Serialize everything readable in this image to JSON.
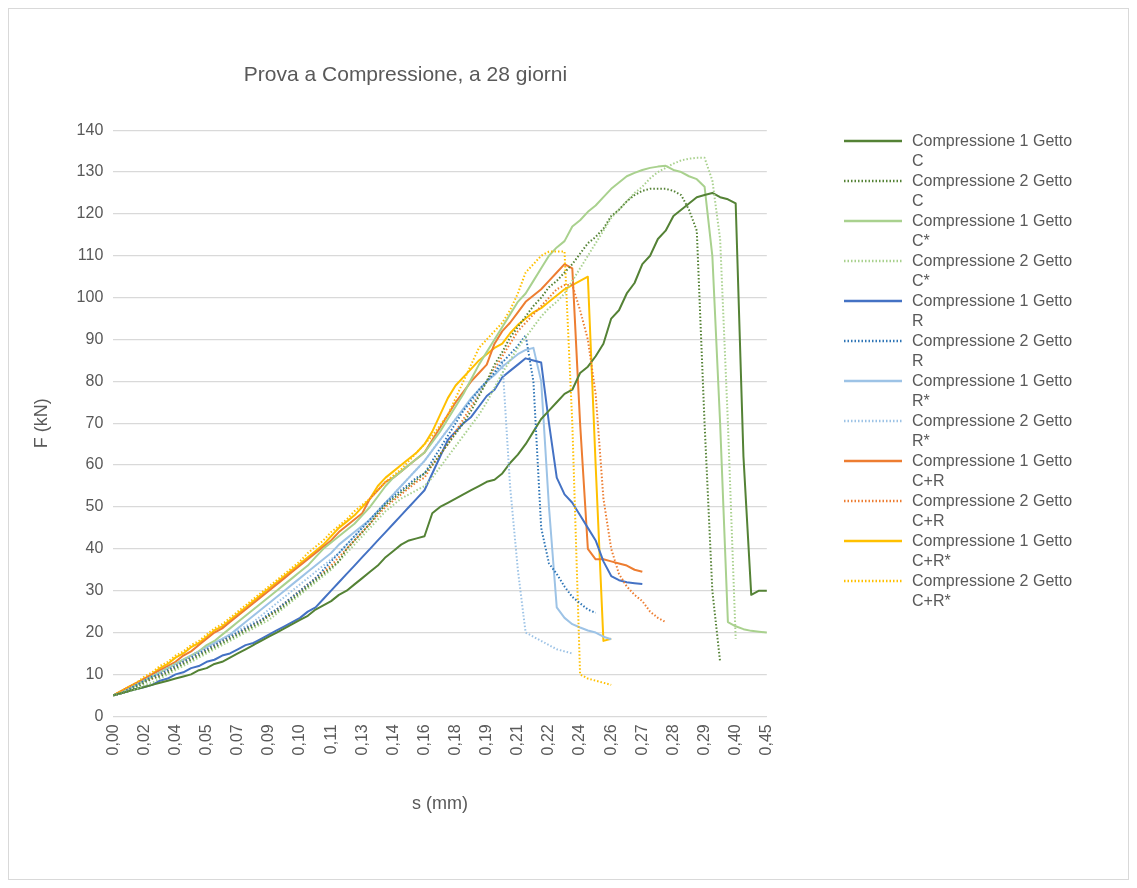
{
  "chart_data": {
    "type": "line",
    "title": "Prova a Compressione, a 28 giorni",
    "xlabel": "s (mm)",
    "ylabel": "F (kN)",
    "categories": [
      "0,00",
      null,
      null,
      null,
      "0,02",
      null,
      null,
      null,
      "0,04",
      null,
      null,
      null,
      "0,05",
      null,
      null,
      null,
      "0,07",
      null,
      null,
      null,
      "0,09",
      null,
      null,
      null,
      "0,10",
      null,
      null,
      null,
      "0,11",
      null,
      null,
      null,
      "0,13",
      null,
      null,
      null,
      "0,14",
      null,
      null,
      null,
      "0,16",
      null,
      null,
      null,
      "0,18",
      null,
      null,
      null,
      "0,19",
      null,
      null,
      null,
      "0,21",
      null,
      null,
      null,
      "0,22",
      null,
      null,
      null,
      "0,24",
      null,
      null,
      null,
      "0,26",
      null,
      null,
      null,
      "0,27",
      null,
      null,
      null,
      "0,28",
      null,
      null,
      null,
      "0,29",
      null,
      null,
      null,
      "0,40",
      null,
      null,
      null,
      "0,45"
    ],
    "series": [
      {
        "name": "Compressione 1 Getto C",
        "color": "#548235",
        "line_style": "solid",
        "values": [
          5,
          5.5,
          6,
          6.5,
          7,
          7.5,
          8,
          8.5,
          9,
          9.5,
          10,
          11,
          11.5,
          12.5,
          13,
          14,
          15,
          16,
          17,
          18,
          19,
          20,
          21,
          22,
          23,
          24,
          25.5,
          26.5,
          27.5,
          29,
          30,
          31.5,
          33,
          34.5,
          36,
          38,
          39.5,
          41,
          42,
          42.5,
          43,
          48.5,
          50,
          51,
          52,
          53,
          54,
          55,
          56,
          56.5,
          58,
          60.5,
          62.5,
          65,
          68,
          71,
          73,
          75,
          77,
          78,
          82,
          83.5,
          86,
          89,
          95,
          97,
          101,
          103.5,
          108,
          110,
          114,
          116,
          119.5,
          121,
          122.5,
          124,
          124.5,
          125,
          124,
          123.5,
          122.5,
          62,
          29,
          30,
          30
        ]
      },
      {
        "name": "Compressione 2 Getto C",
        "color": "#548235",
        "line_style": "dotted",
        "values": [
          5,
          5.5,
          6,
          7,
          8,
          9,
          9.5,
          10.5,
          11.5,
          12.5,
          13.5,
          14.5,
          15.5,
          16.5,
          17.5,
          18.5,
          19.5,
          20.5,
          21.5,
          22.5,
          24,
          25,
          26.5,
          28,
          29.5,
          31,
          32.5,
          34,
          35.5,
          37,
          40,
          42,
          44,
          46,
          48.5,
          50.5,
          52,
          53.5,
          55,
          56.5,
          58,
          60,
          62.5,
          65,
          67.5,
          70,
          73,
          76.5,
          80,
          84,
          87,
          90.5,
          93,
          95.5,
          98,
          100,
          102.5,
          104,
          106,
          108,
          110.5,
          113,
          114.5,
          116.5,
          119.5,
          121,
          123,
          124.5,
          125.5,
          126,
          126,
          126,
          125.5,
          124.5,
          121,
          116,
          70,
          30,
          13,
          null,
          null,
          null,
          null,
          null,
          null
        ]
      },
      {
        "name": "Compressione 1 Getto C*",
        "color": "#a9d18e",
        "line_style": "solid",
        "values": [
          5,
          5.5,
          6.5,
          7.5,
          8.5,
          9.5,
          10.5,
          11.5,
          12.5,
          13.5,
          14.5,
          15.5,
          17,
          18,
          19.5,
          21,
          22.5,
          24,
          25.5,
          27,
          28.5,
          30,
          31.5,
          33,
          34.5,
          36,
          38,
          40,
          41.5,
          43,
          44.5,
          46,
          48,
          50,
          52.5,
          55,
          57,
          58.5,
          60,
          61.5,
          63,
          65.5,
          68,
          71,
          74,
          77,
          80.5,
          84,
          87,
          90,
          93,
          96,
          99,
          101,
          104,
          107,
          110,
          112,
          113.5,
          117,
          118.5,
          120.5,
          122,
          124,
          126,
          127.5,
          129,
          129.8,
          130.5,
          131,
          131.3,
          131.5,
          130.5,
          130,
          129,
          128.3,
          126.5,
          110,
          70,
          22.5,
          21.5,
          20.8,
          20.4,
          20.2,
          20
        ]
      },
      {
        "name": "Compressione 2 Getto C*",
        "color": "#a9d18e",
        "line_style": "dotted",
        "values": [
          5,
          5.5,
          6,
          6.5,
          7.5,
          8,
          9,
          10,
          11,
          12,
          13,
          14,
          15,
          16,
          17,
          18,
          19,
          20,
          21,
          22,
          23,
          24.5,
          26,
          27.5,
          29,
          30.5,
          32,
          33.5,
          35,
          37,
          39,
          41,
          43,
          45,
          47,
          49,
          50.5,
          52,
          53,
          54,
          55,
          57,
          59.5,
          62,
          64.5,
          67,
          69.5,
          72,
          75,
          78.5,
          82,
          85,
          88,
          90.5,
          93,
          95.5,
          97.5,
          99,
          101,
          104,
          107,
          110,
          113,
          116,
          119,
          121,
          123,
          125,
          126.5,
          128.5,
          130,
          131,
          132,
          132.8,
          133.2,
          133.4,
          133.4,
          128,
          114,
          70,
          18.5,
          null,
          null,
          null,
          null
        ]
      },
      {
        "name": "Compressione 1 Getto R",
        "color": "#4472c4",
        "line_style": "solid",
        "values": [
          5,
          5.5,
          6,
          6.5,
          7,
          7.5,
          8.5,
          9,
          10,
          10.5,
          11.5,
          12,
          13,
          13.5,
          14.5,
          15,
          16,
          17,
          17.5,
          18.5,
          19.5,
          20.5,
          21.5,
          22.5,
          23.5,
          25,
          26,
          28,
          30,
          32,
          34,
          36,
          38,
          40,
          42,
          44,
          46,
          48,
          50,
          52,
          54,
          58,
          62,
          66,
          68,
          70,
          71.5,
          74,
          76.5,
          78,
          81,
          82.5,
          84,
          85.5,
          85,
          84.5,
          70,
          57,
          53,
          51,
          48,
          45,
          42,
          37,
          33.5,
          32.5,
          32,
          31.8,
          31.6,
          null,
          null,
          null,
          null,
          null,
          null,
          null,
          null,
          null,
          null,
          null,
          null,
          null,
          null,
          null,
          null
        ]
      },
      {
        "name": "Compressione 2 Getto R",
        "color": "#2e75b6",
        "line_style": "dotted",
        "values": [
          5,
          5.5,
          6.5,
          7.5,
          8.5,
          9.5,
          10,
          11,
          12,
          13,
          14,
          15,
          16,
          17,
          18,
          19,
          20,
          21,
          22,
          23,
          24.5,
          25.5,
          27,
          28.5,
          30,
          31.5,
          33,
          35,
          37,
          39,
          41,
          43,
          45,
          47,
          49,
          51,
          52.5,
          54,
          55.5,
          57,
          58,
          61,
          64,
          67,
          70,
          73,
          75.5,
          78,
          80,
          82,
          84.5,
          86.5,
          88.5,
          91,
          80,
          45,
          36.5,
          34,
          31,
          28.5,
          27,
          25.5,
          24.7,
          null,
          null,
          null,
          null,
          null,
          null,
          null,
          null,
          null,
          null,
          null,
          null,
          null,
          null,
          null,
          null,
          null,
          null,
          null,
          null,
          null,
          null
        ]
      },
      {
        "name": "Compressione 1 Getto R*",
        "color": "#9dc3e6",
        "line_style": "solid",
        "values": [
          5,
          5.5,
          6.5,
          7.5,
          8.5,
          9.5,
          10.5,
          11.5,
          12.5,
          13.5,
          14.5,
          15.5,
          16.5,
          17.5,
          18.5,
          19.5,
          21,
          22.5,
          24,
          25.5,
          27,
          28.5,
          30,
          31.5,
          33,
          34.5,
          36,
          37.5,
          39,
          41,
          42.5,
          44,
          45.5,
          47,
          49,
          51,
          53,
          55,
          57,
          59,
          61,
          63.5,
          66,
          68.5,
          71,
          73.5,
          76,
          78,
          80,
          81.5,
          83.5,
          85,
          86.5,
          87.5,
          88,
          80,
          50,
          26,
          23.5,
          22,
          21.2,
          20.5,
          20,
          19,
          18.4,
          null,
          null,
          null,
          null,
          null,
          null,
          null,
          null,
          null,
          null,
          null,
          null,
          null,
          null,
          null,
          null,
          null,
          null,
          null,
          null
        ]
      },
      {
        "name": "Compressione 2 Getto R*",
        "color": "#9dc3e6",
        "line_style": "dotted",
        "values": [
          5,
          5.5,
          6.5,
          7.5,
          8.5,
          9.5,
          10.5,
          11.5,
          12.5,
          13.5,
          14.5,
          15.5,
          16.5,
          17.5,
          18.5,
          19.5,
          20.5,
          21.5,
          22.5,
          24,
          25.5,
          27,
          28.5,
          30,
          31.5,
          33,
          34.5,
          36,
          37.5,
          39,
          41,
          43,
          45,
          47,
          49,
          51,
          53,
          55,
          57,
          59,
          61,
          63.5,
          66,
          68.5,
          71,
          73,
          75,
          77,
          80,
          82.5,
          85,
          55,
          35,
          20,
          19,
          18,
          17,
          16,
          15.5,
          15,
          null,
          null,
          null,
          null,
          null,
          null,
          null,
          null,
          null,
          null,
          null,
          null,
          null,
          null,
          null,
          null,
          null,
          null,
          null,
          null,
          null,
          null,
          null,
          null,
          null
        ]
      },
      {
        "name": "Compressione 1 Getto C+R",
        "color": "#ed7d31",
        "line_style": "solid",
        "values": [
          5,
          6,
          7,
          8,
          9,
          10,
          11,
          12,
          13,
          14.5,
          15.5,
          17,
          18.5,
          20,
          21,
          22.5,
          24,
          25.5,
          27,
          28.5,
          30,
          31.5,
          33,
          34.5,
          36,
          37.5,
          39,
          40.5,
          42,
          44,
          45.5,
          47,
          48.5,
          52,
          54,
          56,
          57,
          58.5,
          60,
          61.5,
          63,
          66,
          69,
          72,
          75,
          77.5,
          80,
          82,
          84,
          89,
          92,
          94,
          96.5,
          99,
          100.5,
          102,
          104,
          106,
          108,
          107,
          70,
          40,
          37.5,
          37.5,
          37,
          36.5,
          36,
          35,
          34.5,
          null,
          null,
          null,
          null,
          null,
          null,
          null,
          null,
          null,
          null,
          null,
          null,
          null,
          null,
          null,
          null
        ]
      },
      {
        "name": "Compressione 2 Getto C+R",
        "color": "#ed7d31",
        "line_style": "dotted",
        "values": [
          5,
          5.5,
          6.5,
          7.5,
          8.5,
          9,
          10,
          11,
          12,
          13,
          14,
          15,
          16,
          17,
          18,
          19,
          20,
          21,
          22,
          23,
          24,
          25.5,
          27,
          28.5,
          30,
          31.5,
          33,
          34.5,
          36,
          38,
          40,
          42,
          44,
          46,
          48,
          50,
          51.5,
          53,
          54.5,
          56,
          57,
          60,
          62.5,
          65,
          68,
          71,
          74,
          77,
          80,
          83,
          86,
          89,
          92,
          94,
          96,
          98,
          100,
          102,
          103,
          103,
          97,
          90,
          77,
          52,
          40,
          34,
          31,
          29,
          27.5,
          25,
          23.5,
          22.5,
          null,
          null,
          null,
          null,
          null,
          null,
          null,
          null,
          null,
          null,
          null,
          null,
          null
        ]
      },
      {
        "name": "Compressione 1 Getto C+R*",
        "color": "#ffc000",
        "line_style": "solid",
        "values": [
          5,
          6,
          7,
          8,
          9,
          10,
          11.5,
          12.5,
          14,
          15,
          16.5,
          17.5,
          19,
          20.5,
          21.5,
          23,
          24.5,
          26,
          27.5,
          29,
          30.5,
          32,
          33.5,
          35,
          36.5,
          38,
          39.5,
          41,
          43,
          45,
          46.5,
          48,
          50,
          52,
          55,
          57,
          58.5,
          60,
          61.5,
          63,
          65,
          68,
          72,
          76,
          79,
          81,
          83,
          85,
          86.5,
          88,
          89,
          91.5,
          93.5,
          95,
          96.5,
          97.5,
          99,
          100.5,
          102,
          103,
          104,
          105,
          60,
          18,
          18.5,
          null,
          null,
          null,
          null,
          null,
          null,
          null,
          null,
          null,
          null,
          null,
          null,
          null,
          null,
          null,
          null,
          null,
          null,
          null,
          null
        ]
      },
      {
        "name": "Compressione 2 Getto C+R*",
        "color": "#ffc000",
        "line_style": "dotted",
        "values": [
          5,
          6,
          7,
          8,
          9.5,
          10.5,
          12,
          13,
          14.5,
          15.5,
          17,
          18,
          19.5,
          21,
          22,
          23.5,
          25,
          26.5,
          28,
          29.5,
          31,
          32.5,
          34,
          35.5,
          37,
          39,
          40.5,
          42,
          44,
          45.5,
          47,
          49,
          50.5,
          52,
          54,
          56,
          57.5,
          59,
          61,
          63,
          65,
          67,
          69.5,
          72,
          76,
          80,
          84,
          88,
          90,
          92,
          94,
          97,
          101,
          106,
          108,
          110,
          111,
          111,
          111,
          70,
          10,
          9,
          8.5,
          8,
          7.5,
          null,
          null,
          null,
          null,
          null,
          null,
          null,
          null,
          null,
          null,
          null,
          null,
          null,
          null,
          null,
          null,
          null,
          null,
          null,
          null
        ]
      }
    ],
    "ylim": [
      0,
      140
    ],
    "yticks": [
      0,
      10,
      20,
      30,
      40,
      50,
      60,
      70,
      80,
      90,
      100,
      110,
      120,
      130,
      140
    ],
    "grid": "y",
    "legend": "right",
    "marker": "none"
  }
}
